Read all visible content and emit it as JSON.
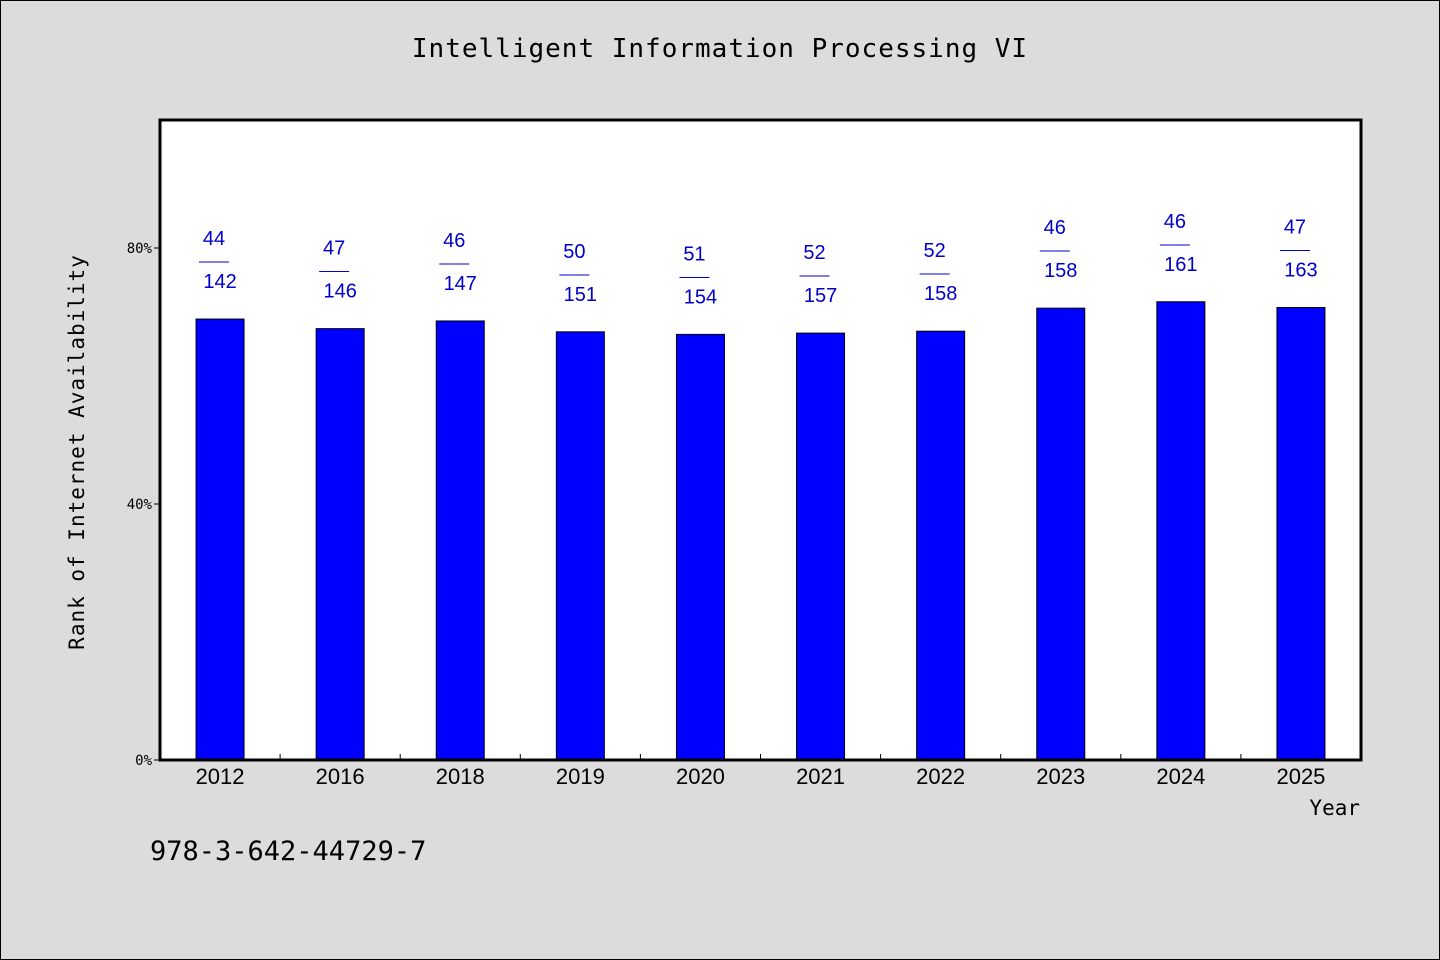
{
  "chart_data": {
    "type": "bar",
    "title": "Intelligent Information Processing VI",
    "xlabel": "Year",
    "ylabel": "Rank of Internet Availability",
    "categories": [
      "2012",
      "2016",
      "2018",
      "2019",
      "2020",
      "2021",
      "2022",
      "2023",
      "2024",
      "2025"
    ],
    "values": [
      68.9,
      67.4,
      68.6,
      66.9,
      66.5,
      66.7,
      67.0,
      70.6,
      71.6,
      70.7
    ],
    "annotations": [
      {
        "rank": "44",
        "sep": "——",
        "total": "142"
      },
      {
        "rank": "47",
        "sep": "——",
        "total": "146"
      },
      {
        "rank": "46",
        "sep": "——",
        "total": "147"
      },
      {
        "rank": "50",
        "sep": "——",
        "total": "151"
      },
      {
        "rank": "51",
        "sep": "——",
        "total": "154"
      },
      {
        "rank": "52",
        "sep": "——",
        "total": "157"
      },
      {
        "rank": "52",
        "sep": "——",
        "total": "158"
      },
      {
        "rank": "46",
        "sep": "——",
        "total": "158"
      },
      {
        "rank": "46",
        "sep": "——",
        "total": "161"
      },
      {
        "rank": "47",
        "sep": "——",
        "total": "163"
      }
    ],
    "yticks": [
      {
        "value": 0,
        "label": "0%"
      },
      {
        "value": 40,
        "label": "40%"
      },
      {
        "value": 80,
        "label": "80%"
      }
    ],
    "ylim": [
      0,
      100
    ],
    "grid": false,
    "bar_color": "#0000ff",
    "label_color": "#0000cc",
    "plot_background": "#ffffff",
    "page_background": "#dcdcdc"
  },
  "footer": {
    "isbn": "978-3-642-44729-7"
  }
}
